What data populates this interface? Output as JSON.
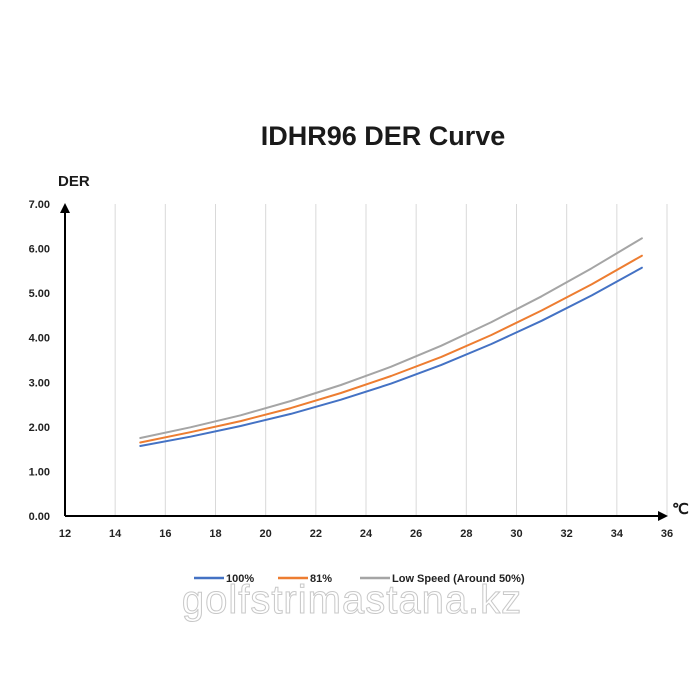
{
  "chart_data": {
    "type": "line",
    "title": "IDHR96  DER Curve",
    "ylabel": "DER",
    "xlabel": "℃",
    "xlim": [
      12,
      36
    ],
    "ylim": [
      0,
      7
    ],
    "x_ticks": [
      "12",
      "14",
      "16",
      "18",
      "20",
      "22",
      "24",
      "26",
      "28",
      "30",
      "32",
      "34",
      "36"
    ],
    "y_ticks": [
      "0.00",
      "1.00",
      "2.00",
      "3.00",
      "4.00",
      "5.00",
      "6.00",
      "7.00"
    ],
    "grid": "vertical",
    "legend_position": "bottom",
    "x": [
      15,
      17,
      19,
      21,
      23,
      25,
      27,
      29,
      31,
      33,
      35
    ],
    "series": [
      {
        "name": "100%",
        "color": "#4472c4",
        "values": [
          1.57,
          1.78,
          2.02,
          2.29,
          2.61,
          2.97,
          3.39,
          3.86,
          4.38,
          4.95,
          5.57
        ]
      },
      {
        "name": "81%",
        "color": "#ed7d31",
        "values": [
          1.65,
          1.88,
          2.13,
          2.42,
          2.76,
          3.14,
          3.57,
          4.06,
          4.61,
          5.2,
          5.84
        ]
      },
      {
        "name": "Low Speed (Around 50%)",
        "color": "#a5a5a5",
        "values": [
          1.75,
          1.99,
          2.26,
          2.58,
          2.94,
          3.35,
          3.82,
          4.35,
          4.93,
          5.56,
          6.23
        ]
      }
    ]
  },
  "watermark": "golfstrimastana.kz"
}
